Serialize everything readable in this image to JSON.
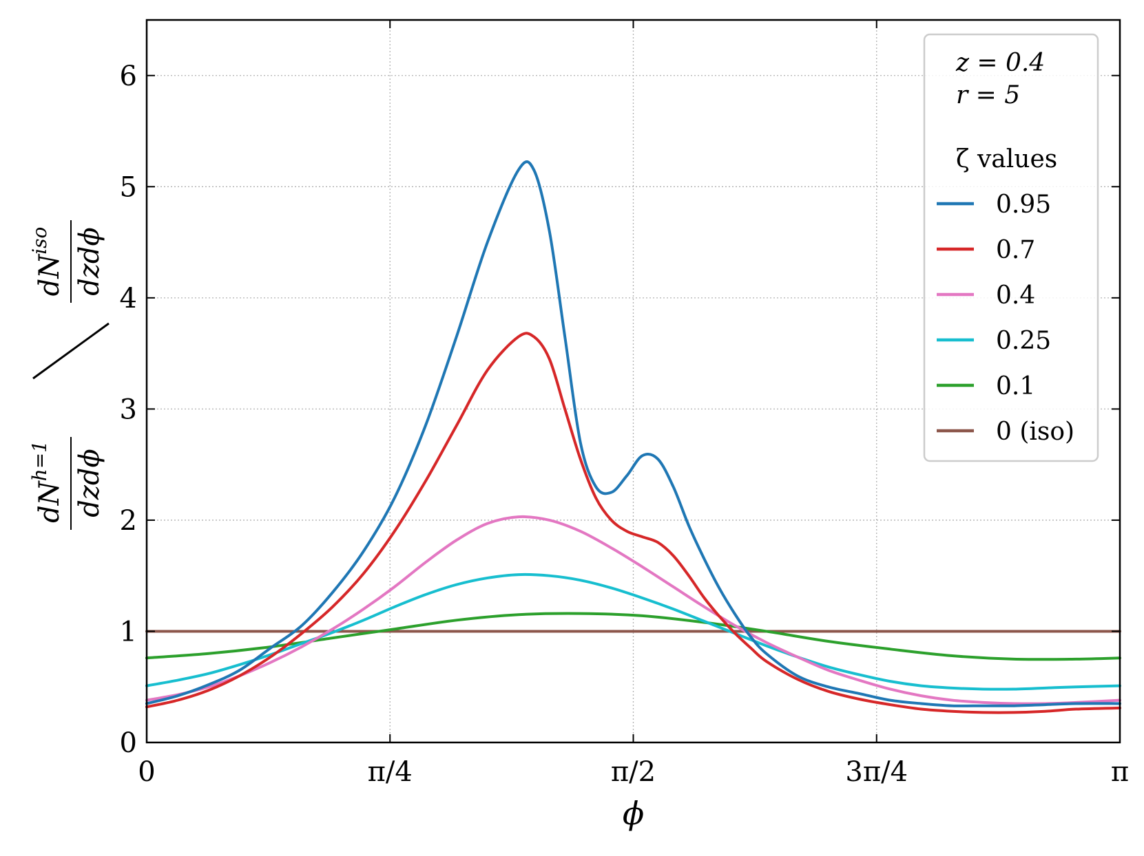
{
  "chart_data": {
    "type": "line",
    "xlabel": "ϕ",
    "ylabel": {
      "numerator_left": "dN",
      "numerator_left_sup": "h=1",
      "denominator_left": "dzdϕ",
      "numerator_right": "dN",
      "numerator_right_sup": "iso",
      "denominator_right": "dzdϕ"
    },
    "xlim": [
      0,
      3.14159265
    ],
    "ylim": [
      0,
      6.5
    ],
    "x_ticks": [
      {
        "value": 0,
        "label": "0"
      },
      {
        "value": 0.78539816,
        "label": "π/4"
      },
      {
        "value": 1.57079633,
        "label": "π/2"
      },
      {
        "value": 2.35619449,
        "label": "3π/4"
      },
      {
        "value": 3.14159265,
        "label": "π"
      }
    ],
    "y_ticks": [
      0,
      1,
      2,
      3,
      4,
      5,
      6
    ],
    "grid": true,
    "legend_position": "top-right",
    "legend_annotations": [
      "z = 0.4",
      "r = 5"
    ],
    "legend_title": "ζ values",
    "series": [
      {
        "name": "0.95",
        "color": "#1f77b4",
        "x": [
          0,
          0.1,
          0.2,
          0.3,
          0.4,
          0.5,
          0.6,
          0.7,
          0.8,
          0.9,
          1.0,
          1.1,
          1.2,
          1.25,
          1.3,
          1.35,
          1.4,
          1.45,
          1.5,
          1.55,
          1.6,
          1.65,
          1.7,
          1.75,
          1.8,
          1.85,
          1.9,
          1.95,
          2.0,
          2.1,
          2.2,
          2.3,
          2.4,
          2.5,
          2.6,
          2.7,
          2.8,
          2.9,
          3.0,
          3.14159265
        ],
        "y": [
          0.35,
          0.42,
          0.52,
          0.65,
          0.85,
          1.05,
          1.35,
          1.72,
          2.2,
          2.85,
          3.65,
          4.5,
          5.15,
          5.15,
          4.6,
          3.65,
          2.7,
          2.3,
          2.25,
          2.4,
          2.58,
          2.55,
          2.3,
          1.95,
          1.65,
          1.38,
          1.15,
          0.95,
          0.8,
          0.6,
          0.5,
          0.44,
          0.38,
          0.35,
          0.33,
          0.33,
          0.33,
          0.34,
          0.35,
          0.35
        ]
      },
      {
        "name": "0.7",
        "color": "#d62728",
        "x": [
          0,
          0.1,
          0.2,
          0.3,
          0.4,
          0.5,
          0.6,
          0.7,
          0.8,
          0.9,
          1.0,
          1.1,
          1.2,
          1.25,
          1.3,
          1.35,
          1.4,
          1.45,
          1.5,
          1.55,
          1.6,
          1.65,
          1.7,
          1.75,
          1.8,
          1.85,
          1.9,
          1.95,
          2.0,
          2.1,
          2.2,
          2.3,
          2.4,
          2.5,
          2.6,
          2.7,
          2.8,
          2.9,
          3.0,
          3.14159265
        ],
        "y": [
          0.32,
          0.38,
          0.47,
          0.6,
          0.77,
          0.98,
          1.22,
          1.52,
          1.9,
          2.35,
          2.85,
          3.35,
          3.65,
          3.65,
          3.45,
          3.0,
          2.55,
          2.2,
          2.0,
          1.9,
          1.85,
          1.8,
          1.68,
          1.5,
          1.3,
          1.13,
          0.98,
          0.85,
          0.73,
          0.57,
          0.46,
          0.39,
          0.34,
          0.3,
          0.28,
          0.27,
          0.27,
          0.28,
          0.3,
          0.31
        ]
      },
      {
        "name": "0.4",
        "color": "#e377c2",
        "x": [
          0,
          0.1,
          0.2,
          0.3,
          0.4,
          0.5,
          0.6,
          0.7,
          0.8,
          0.9,
          1.0,
          1.1,
          1.2,
          1.3,
          1.4,
          1.5,
          1.6,
          1.7,
          1.8,
          1.9,
          2.0,
          2.1,
          2.2,
          2.3,
          2.4,
          2.5,
          2.6,
          2.7,
          2.8,
          2.9,
          3.0,
          3.14159265
        ],
        "y": [
          0.38,
          0.43,
          0.5,
          0.6,
          0.72,
          0.86,
          1.02,
          1.2,
          1.4,
          1.62,
          1.82,
          1.97,
          2.03,
          2.0,
          1.9,
          1.75,
          1.58,
          1.4,
          1.22,
          1.05,
          0.9,
          0.77,
          0.65,
          0.56,
          0.48,
          0.42,
          0.38,
          0.36,
          0.35,
          0.35,
          0.36,
          0.38
        ]
      },
      {
        "name": "0.25",
        "color": "#17becf",
        "x": [
          0,
          0.1,
          0.2,
          0.3,
          0.4,
          0.5,
          0.6,
          0.7,
          0.8,
          0.9,
          1.0,
          1.1,
          1.2,
          1.3,
          1.4,
          1.5,
          1.6,
          1.7,
          1.8,
          1.9,
          2.0,
          2.1,
          2.2,
          2.3,
          2.4,
          2.5,
          2.6,
          2.7,
          2.8,
          2.9,
          3.0,
          3.14159265
        ],
        "y": [
          0.51,
          0.56,
          0.62,
          0.7,
          0.79,
          0.89,
          0.99,
          1.1,
          1.22,
          1.33,
          1.42,
          1.48,
          1.51,
          1.5,
          1.46,
          1.39,
          1.3,
          1.2,
          1.09,
          0.98,
          0.87,
          0.77,
          0.68,
          0.61,
          0.55,
          0.51,
          0.49,
          0.48,
          0.48,
          0.49,
          0.5,
          0.51
        ]
      },
      {
        "name": "0.1",
        "color": "#2ca02c",
        "x": [
          0,
          0.2,
          0.4,
          0.6,
          0.8,
          1.0,
          1.2,
          1.4,
          1.6,
          1.8,
          2.0,
          2.2,
          2.4,
          2.6,
          2.8,
          3.0,
          3.14159265
        ],
        "y": [
          0.76,
          0.8,
          0.86,
          0.94,
          1.02,
          1.1,
          1.15,
          1.16,
          1.14,
          1.08,
          1.0,
          0.91,
          0.84,
          0.78,
          0.75,
          0.75,
          0.76
        ]
      },
      {
        "name": "0 (iso)",
        "color": "#8c564b",
        "x": [
          0,
          3.14159265
        ],
        "y": [
          1,
          1
        ]
      }
    ]
  }
}
